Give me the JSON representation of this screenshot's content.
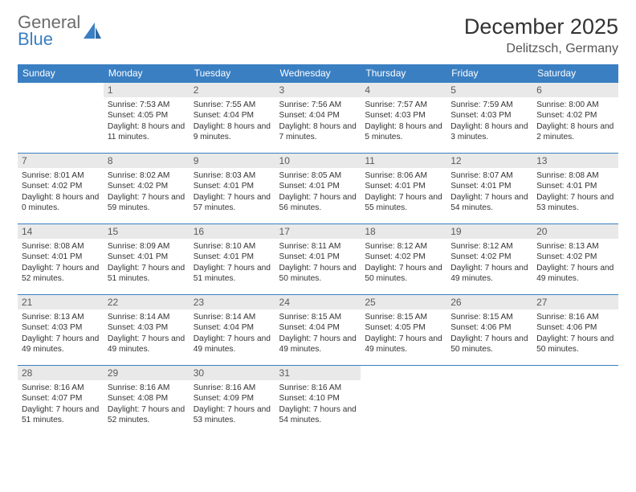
{
  "brand": {
    "word1": "General",
    "word2": "Blue"
  },
  "title": "December 2025",
  "location": "Delitzsch, Germany",
  "colors": {
    "header_bg": "#3a7fc2",
    "header_text": "#ffffff",
    "daynum_bg": "#e9e9e9",
    "daynum_text": "#5a5a5a",
    "body_text": "#333333",
    "rule": "#3a7fc2",
    "page_bg": "#ffffff",
    "logo_gray": "#6c6c6c",
    "logo_blue": "#3a7fc2"
  },
  "weekdays": [
    "Sunday",
    "Monday",
    "Tuesday",
    "Wednesday",
    "Thursday",
    "Friday",
    "Saturday"
  ],
  "grid": [
    [
      null,
      {
        "n": "1",
        "sr": "7:53 AM",
        "ss": "4:05 PM",
        "dl": "8 hours and 11 minutes."
      },
      {
        "n": "2",
        "sr": "7:55 AM",
        "ss": "4:04 PM",
        "dl": "8 hours and 9 minutes."
      },
      {
        "n": "3",
        "sr": "7:56 AM",
        "ss": "4:04 PM",
        "dl": "8 hours and 7 minutes."
      },
      {
        "n": "4",
        "sr": "7:57 AM",
        "ss": "4:03 PM",
        "dl": "8 hours and 5 minutes."
      },
      {
        "n": "5",
        "sr": "7:59 AM",
        "ss": "4:03 PM",
        "dl": "8 hours and 3 minutes."
      },
      {
        "n": "6",
        "sr": "8:00 AM",
        "ss": "4:02 PM",
        "dl": "8 hours and 2 minutes."
      }
    ],
    [
      {
        "n": "7",
        "sr": "8:01 AM",
        "ss": "4:02 PM",
        "dl": "8 hours and 0 minutes."
      },
      {
        "n": "8",
        "sr": "8:02 AM",
        "ss": "4:02 PM",
        "dl": "7 hours and 59 minutes."
      },
      {
        "n": "9",
        "sr": "8:03 AM",
        "ss": "4:01 PM",
        "dl": "7 hours and 57 minutes."
      },
      {
        "n": "10",
        "sr": "8:05 AM",
        "ss": "4:01 PM",
        "dl": "7 hours and 56 minutes."
      },
      {
        "n": "11",
        "sr": "8:06 AM",
        "ss": "4:01 PM",
        "dl": "7 hours and 55 minutes."
      },
      {
        "n": "12",
        "sr": "8:07 AM",
        "ss": "4:01 PM",
        "dl": "7 hours and 54 minutes."
      },
      {
        "n": "13",
        "sr": "8:08 AM",
        "ss": "4:01 PM",
        "dl": "7 hours and 53 minutes."
      }
    ],
    [
      {
        "n": "14",
        "sr": "8:08 AM",
        "ss": "4:01 PM",
        "dl": "7 hours and 52 minutes."
      },
      {
        "n": "15",
        "sr": "8:09 AM",
        "ss": "4:01 PM",
        "dl": "7 hours and 51 minutes."
      },
      {
        "n": "16",
        "sr": "8:10 AM",
        "ss": "4:01 PM",
        "dl": "7 hours and 51 minutes."
      },
      {
        "n": "17",
        "sr": "8:11 AM",
        "ss": "4:01 PM",
        "dl": "7 hours and 50 minutes."
      },
      {
        "n": "18",
        "sr": "8:12 AM",
        "ss": "4:02 PM",
        "dl": "7 hours and 50 minutes."
      },
      {
        "n": "19",
        "sr": "8:12 AM",
        "ss": "4:02 PM",
        "dl": "7 hours and 49 minutes."
      },
      {
        "n": "20",
        "sr": "8:13 AM",
        "ss": "4:02 PM",
        "dl": "7 hours and 49 minutes."
      }
    ],
    [
      {
        "n": "21",
        "sr": "8:13 AM",
        "ss": "4:03 PM",
        "dl": "7 hours and 49 minutes."
      },
      {
        "n": "22",
        "sr": "8:14 AM",
        "ss": "4:03 PM",
        "dl": "7 hours and 49 minutes."
      },
      {
        "n": "23",
        "sr": "8:14 AM",
        "ss": "4:04 PM",
        "dl": "7 hours and 49 minutes."
      },
      {
        "n": "24",
        "sr": "8:15 AM",
        "ss": "4:04 PM",
        "dl": "7 hours and 49 minutes."
      },
      {
        "n": "25",
        "sr": "8:15 AM",
        "ss": "4:05 PM",
        "dl": "7 hours and 49 minutes."
      },
      {
        "n": "26",
        "sr": "8:15 AM",
        "ss": "4:06 PM",
        "dl": "7 hours and 50 minutes."
      },
      {
        "n": "27",
        "sr": "8:16 AM",
        "ss": "4:06 PM",
        "dl": "7 hours and 50 minutes."
      }
    ],
    [
      {
        "n": "28",
        "sr": "8:16 AM",
        "ss": "4:07 PM",
        "dl": "7 hours and 51 minutes."
      },
      {
        "n": "29",
        "sr": "8:16 AM",
        "ss": "4:08 PM",
        "dl": "7 hours and 52 minutes."
      },
      {
        "n": "30",
        "sr": "8:16 AM",
        "ss": "4:09 PM",
        "dl": "7 hours and 53 minutes."
      },
      {
        "n": "31",
        "sr": "8:16 AM",
        "ss": "4:10 PM",
        "dl": "7 hours and 54 minutes."
      },
      null,
      null,
      null
    ]
  ],
  "labels": {
    "sunrise": "Sunrise:",
    "sunset": "Sunset:",
    "daylight": "Daylight:"
  }
}
